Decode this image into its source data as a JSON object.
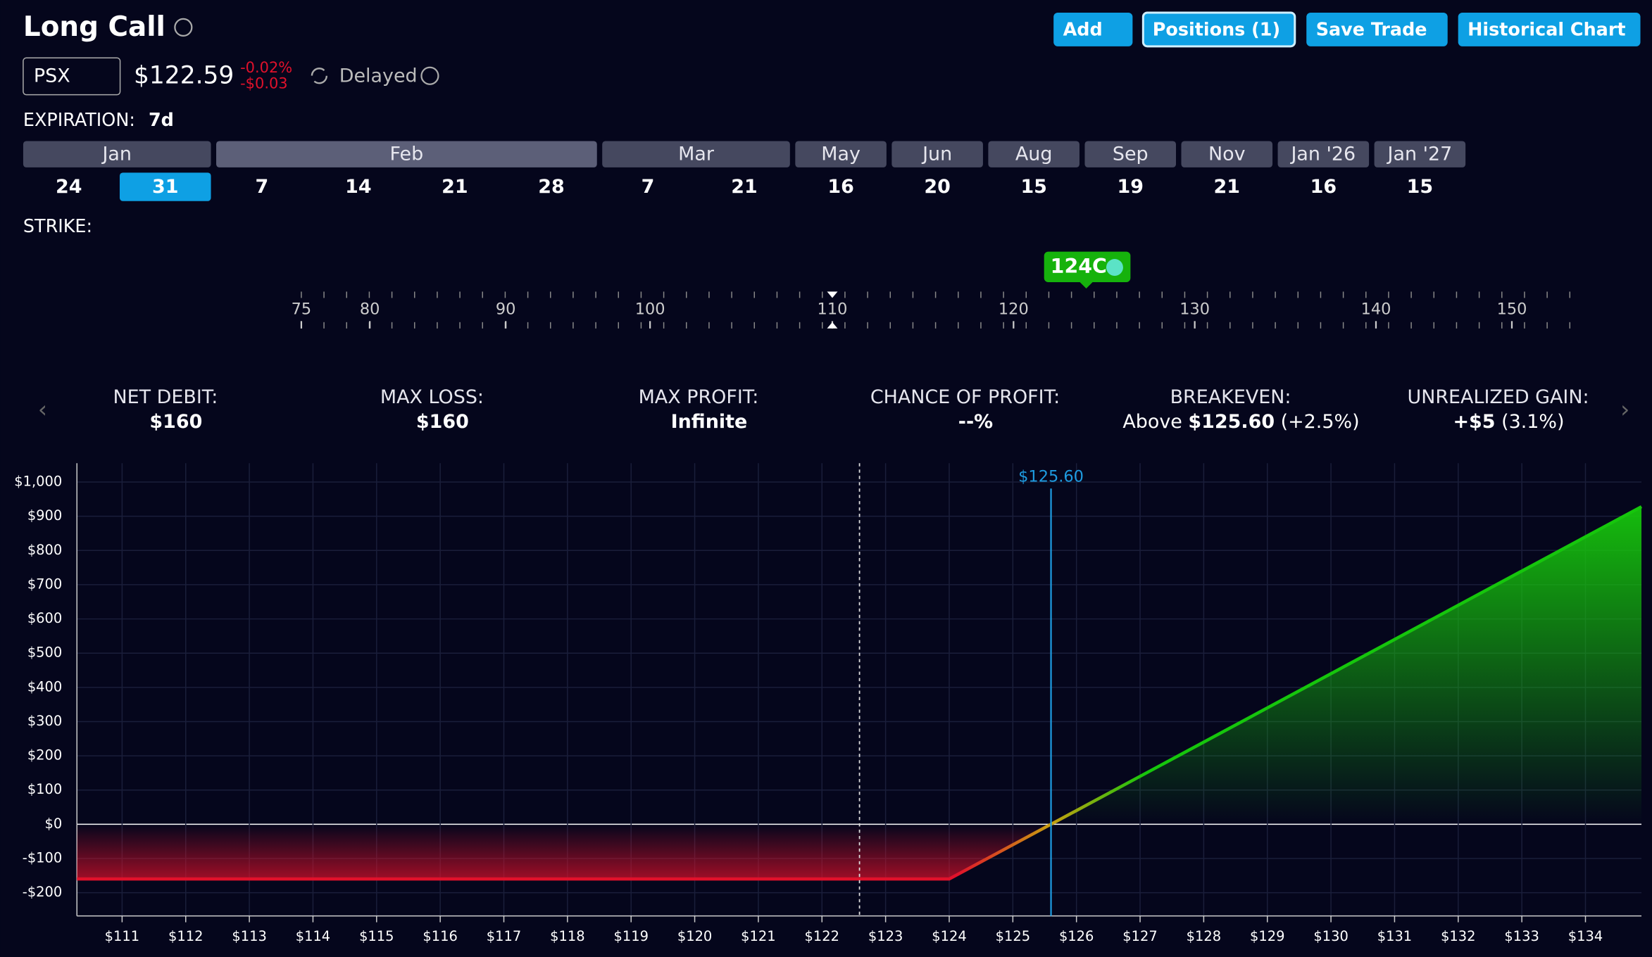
{
  "header": {
    "title": "Long Call",
    "ticker": "PSX",
    "price": "$122.59",
    "change_pct": "-0.02%",
    "change_abs": "-$0.03",
    "status": "Delayed"
  },
  "buttons": [
    "Add",
    "Positions (1)",
    "Save Trade",
    "Historical Chart"
  ],
  "expiration": {
    "label": "EXPIRATION:",
    "value": "7d",
    "months": [
      "Jan",
      "Feb",
      "Mar",
      "May",
      "Jun",
      "Aug",
      "Sep",
      "Nov",
      "Jan '26",
      "Jan '27"
    ],
    "days": [
      "24",
      "31",
      "7",
      "14",
      "21",
      "28",
      "7",
      "21",
      "16",
      "20",
      "15",
      "19",
      "21",
      "16",
      "15"
    ],
    "selected": 1
  },
  "strike": {
    "label": "STRIKE:",
    "ticks": [
      75,
      80,
      90,
      100,
      110,
      120,
      130,
      140,
      150
    ],
    "position": "124C"
  },
  "stats": [
    {
      "label": "NET DEBIT:",
      "value": "$160"
    },
    {
      "label": "MAX LOSS:",
      "value": "$160"
    },
    {
      "label": "MAX PROFIT:",
      "value": "Infinite"
    },
    {
      "label": "CHANCE OF PROFIT:",
      "value": "--%"
    },
    {
      "label": "BREAKEVEN:",
      "prefix": "Above",
      "value": "$125.60",
      "note": "(+2.5%)"
    },
    {
      "label": "UNREALIZED GAIN:",
      "value": "+$5",
      "note": "(3.1%)"
    }
  ],
  "chart_data": {
    "type": "area",
    "x": [
      110.29,
      124,
      125.6,
      134.88
    ],
    "values": [
      -160,
      -160,
      0,
      928
    ],
    "color": "#16c60c",
    "loss_color": "#e0112b",
    "xlim": [
      110.29,
      134.88
    ],
    "ylim": [
      -268,
      1055
    ],
    "xticks": [
      {
        "value": 111,
        "label": "$111"
      },
      {
        "value": 112,
        "label": "$112"
      },
      {
        "value": 113,
        "label": "$113"
      },
      {
        "value": 114,
        "label": "$114"
      },
      {
        "value": 115,
        "label": "$115"
      },
      {
        "value": 116,
        "label": "$116"
      },
      {
        "value": 117,
        "label": "$117"
      },
      {
        "value": 118,
        "label": "$118"
      },
      {
        "value": 119,
        "label": "$119"
      },
      {
        "value": 120,
        "label": "$120"
      },
      {
        "value": 121,
        "label": "$121"
      },
      {
        "value": 122,
        "label": "$122"
      },
      {
        "value": 123,
        "label": "$123"
      },
      {
        "value": 124,
        "label": "$124"
      },
      {
        "value": 125,
        "label": "$125"
      },
      {
        "value": 126,
        "label": "$126"
      },
      {
        "value": 127,
        "label": "$127"
      },
      {
        "value": 128,
        "label": "$128"
      },
      {
        "value": 129,
        "label": "$129"
      },
      {
        "value": 130,
        "label": "$130"
      },
      {
        "value": 131,
        "label": "$131"
      },
      {
        "value": 132,
        "label": "$132"
      },
      {
        "value": 133,
        "label": "$133"
      },
      {
        "value": 134,
        "label": "$134"
      }
    ],
    "yticks": [
      {
        "value": -200,
        "label": "-$200"
      },
      {
        "value": -100,
        "label": "-$100"
      },
      {
        "value": 0,
        "label": "$0"
      },
      {
        "value": 100,
        "label": "$100"
      },
      {
        "value": 200,
        "label": "$200"
      },
      {
        "value": 300,
        "label": "$300"
      },
      {
        "value": 400,
        "label": "$400"
      },
      {
        "value": 500,
        "label": "$500"
      },
      {
        "value": 600,
        "label": "$600"
      },
      {
        "value": 700,
        "label": "$700"
      },
      {
        "value": 800,
        "label": "$800"
      },
      {
        "value": 900,
        "label": "$900"
      },
      {
        "value": 1000,
        "label": "$1,000"
      }
    ],
    "grid": true,
    "current_price": 122.59,
    "breakeven": {
      "value": 125.6,
      "label": "$125.60"
    }
  }
}
